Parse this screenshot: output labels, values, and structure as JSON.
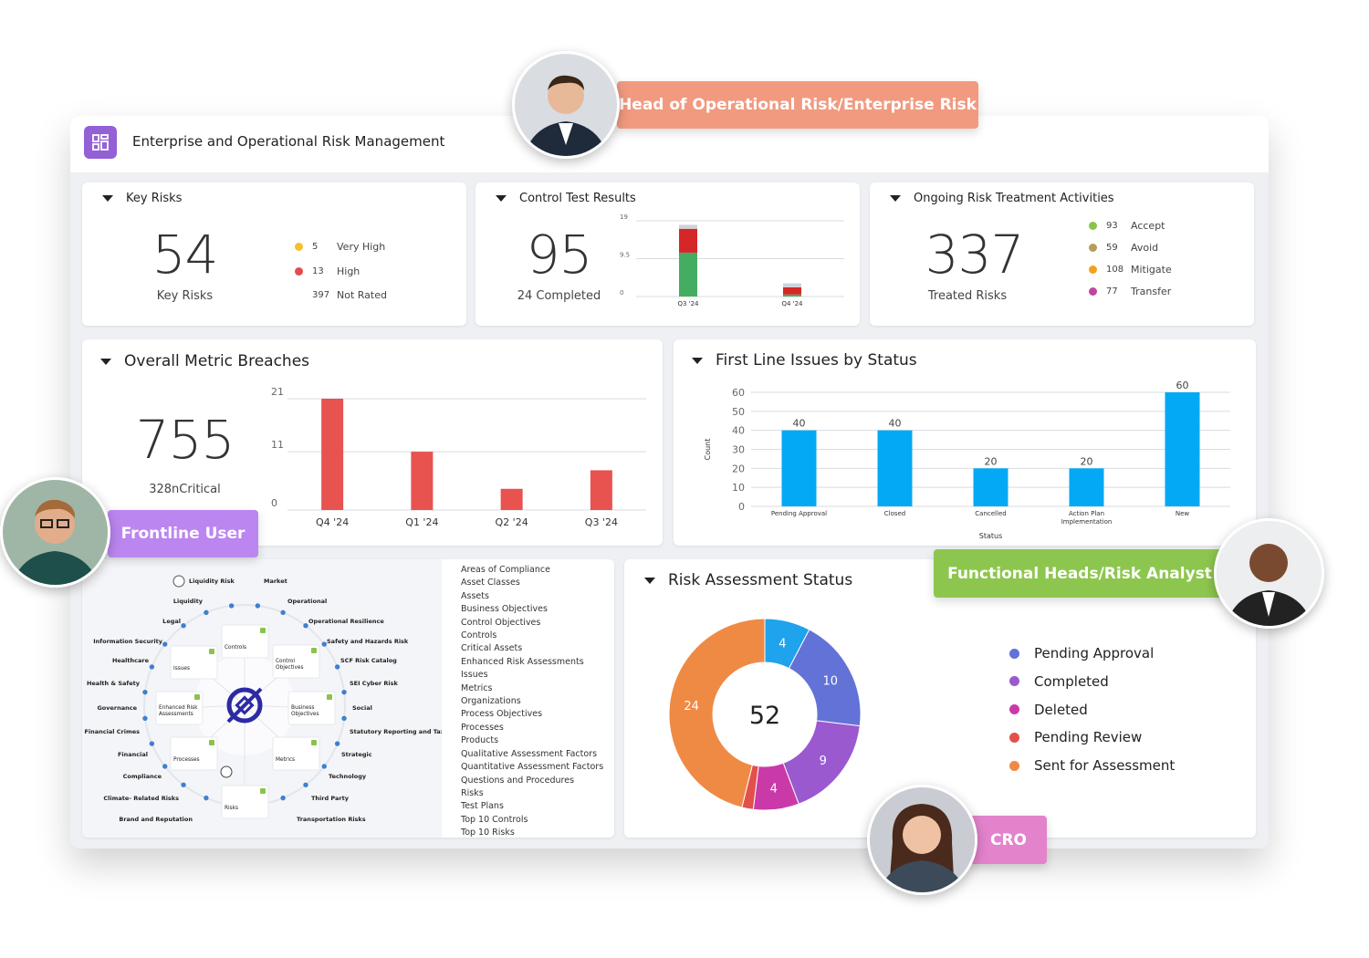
{
  "app": {
    "title": "Enterprise and Operational Risk Management",
    "icon": "dashboard-grid-icon",
    "accent": "#9360d6"
  },
  "personas": [
    {
      "label": "Head of Operational Risk/Enterprise Risk",
      "color": "#f19a80"
    },
    {
      "label": "Frontline User",
      "color": "#bb86f0"
    },
    {
      "label": "Functional Heads/Risk Analyst",
      "color": "#8dc64e"
    },
    {
      "label": "CRO",
      "color": "#e383cc"
    }
  ],
  "key_risks": {
    "title": "Key Risks",
    "value": "54",
    "caption": "Key Risks",
    "legend": [
      {
        "count": "5",
        "label": "Very High",
        "color": "#f5c02a"
      },
      {
        "count": "13",
        "label": "High",
        "color": "#e84a4a"
      },
      {
        "count": "397",
        "label": "Not Rated",
        "color": ""
      }
    ]
  },
  "control_tests": {
    "title": "Control Test Results",
    "value": "95",
    "caption": "24 Completed"
  },
  "treatment": {
    "title": "Ongoing Risk Treatment Activities",
    "value": "337",
    "caption": "Treated Risks",
    "legend": [
      {
        "count": "93",
        "label": "Accept",
        "color": "#8bc34a"
      },
      {
        "count": "59",
        "label": "Avoid",
        "color": "#b89c5e"
      },
      {
        "count": "108",
        "label": "Mitigate",
        "color": "#f5a11c"
      },
      {
        "count": "77",
        "label": "Transfer",
        "color": "#c2459c"
      }
    ]
  },
  "metric_breaches": {
    "title": "Overall Metric Breaches",
    "value": "755",
    "caption": "328nCritical"
  },
  "first_line": {
    "title": "First Line Issues by Status"
  },
  "risk_assessment": {
    "title": "Risk Assessment Status",
    "total": "52",
    "legend": [
      {
        "label": "Pending Approval",
        "color": "#6272d6"
      },
      {
        "label": "Completed",
        "color": "#9b59d0"
      },
      {
        "label": "Deleted",
        "color": "#c93aa8"
      },
      {
        "label": "Pending Review",
        "color": "#e2504a"
      },
      {
        "label": "Sent for Assessment",
        "color": "#ef8a45"
      }
    ]
  },
  "diagram": {
    "left_labels": [
      "Liquidity Risk",
      "Liquidity",
      "Legal",
      "Information Security",
      "Healthcare",
      "Health & Safety",
      "Governance",
      "Financial Crimes",
      "Financial",
      "Compliance",
      "Climate- Related Risks",
      "Brand and Reputation"
    ],
    "right_labels": [
      "Market",
      "Operational",
      "Operational Resilience",
      "Safety and Hazards Risk",
      "SCF Risk Catalog",
      "SEI Cyber Risk",
      "Social",
      "Statutory Reporting and Taxes",
      "Strategic",
      "Technology",
      "Third Party",
      "Transportation Risks"
    ],
    "boxes": [
      "Controls",
      "Control Objectives",
      "Business Objectives",
      "Metrics",
      "Risks",
      "Processes",
      "Enhanced Risk Assessments",
      "Issues"
    ],
    "logo_color": "#2d2aa5"
  },
  "modules": [
    "Areas of Compliance",
    "Asset Classes",
    "Assets",
    "Business Objectives",
    "Control Objectives",
    "Controls",
    "Critical Assets",
    "Enhanced Risk Assessments",
    "Issues",
    "Metrics",
    "Organizations",
    "Process Objectives",
    "Processes",
    "Products",
    "Qualitative Assessment Factors",
    "Quantitative Assessment Factors",
    "Questions and Procedures",
    "Risks",
    "Test Plans",
    "Top 10 Controls",
    "Top 10 Risks"
  ],
  "chart_data": [
    {
      "type": "bar",
      "stacked": true,
      "categories": [
        "Q3 '24",
        "Q4 '24"
      ],
      "ylim": [
        0,
        19
      ],
      "yticks": [
        "0",
        "9.5",
        "19"
      ],
      "series": [
        {
          "values": [
            11,
            0.5
          ],
          "color": "#45ad62"
        },
        {
          "values": [
            6,
            1.8
          ],
          "color": "#d62728"
        },
        {
          "values": [
            1,
            1
          ],
          "color": "#cfd3dc"
        }
      ]
    },
    {
      "type": "bar",
      "categories": [
        "Q4 '24",
        "Q1 '24",
        "Q2 '24",
        "Q3 '24"
      ],
      "values": [
        21,
        11,
        4,
        7.5
      ],
      "ylim": [
        0,
        21
      ],
      "yticks": [
        "0",
        "11",
        "21"
      ],
      "color": "#e8524f"
    },
    {
      "type": "bar",
      "categories": [
        "Pending Approval",
        "Closed",
        "Cancelled",
        "Action Plan Implementation",
        "New"
      ],
      "values": [
        40,
        40,
        20,
        20,
        60
      ],
      "ylim": [
        0,
        60
      ],
      "yticks": [
        "0",
        "10",
        "20",
        "30",
        "40",
        "50",
        "60"
      ],
      "xlabel": "Status",
      "ylabel": "Count",
      "color": "#03a9f4"
    },
    {
      "type": "pie",
      "donut": true,
      "total": 52,
      "values": [
        4,
        10,
        9,
        4,
        1,
        24
      ],
      "colors": [
        "#1ea3ec",
        "#6272d6",
        "#9b59d0",
        "#c93aa8",
        "#e2504a",
        "#ef8a45"
      ],
      "labels": [
        "4",
        "10",
        "9",
        "4",
        "",
        "24"
      ]
    }
  ]
}
